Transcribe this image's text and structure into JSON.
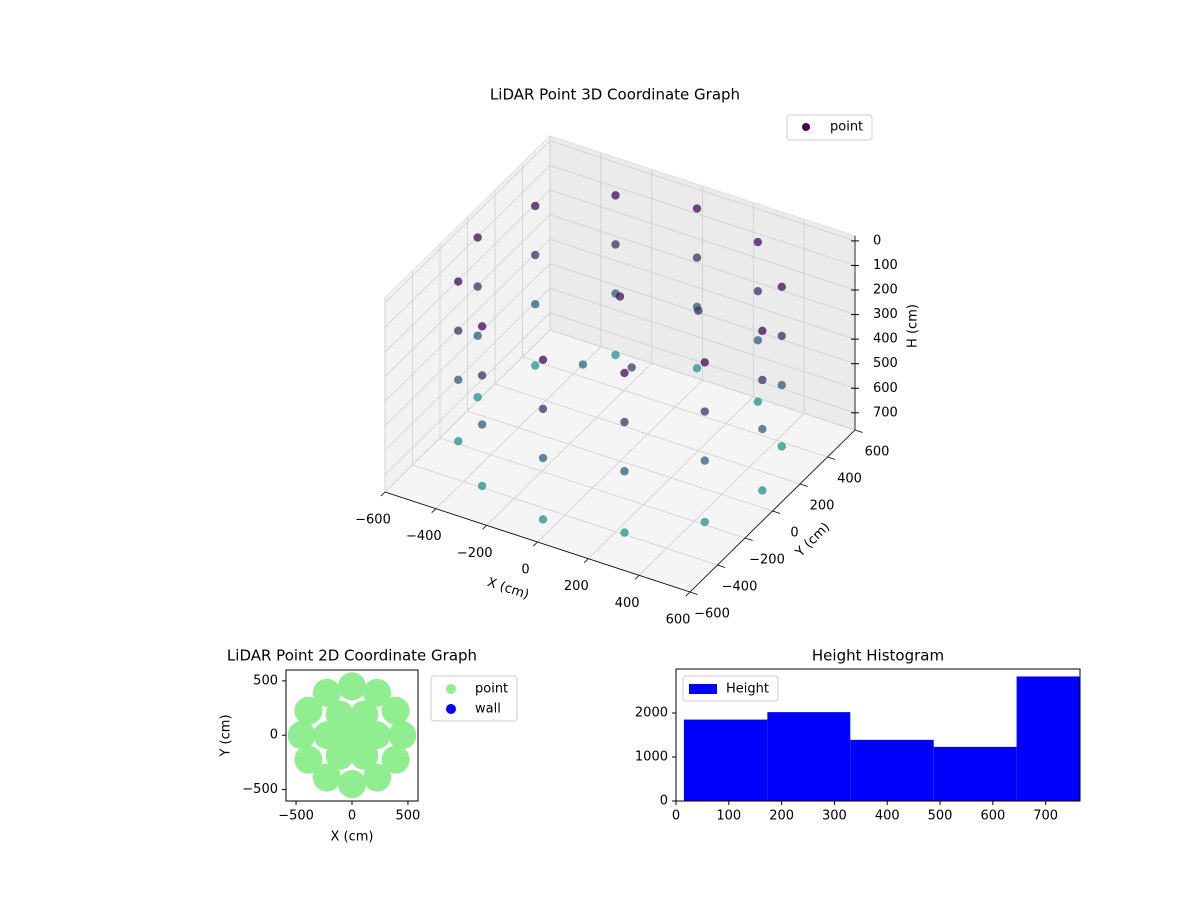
{
  "chart_data": [
    {
      "type": "scatter3d",
      "title": "LiDAR Point 3D Coordinate Graph",
      "x_label": "X (cm)",
      "y_label": "Y (cm)",
      "z_label": "H (cm)",
      "xlim": [
        -600,
        600
      ],
      "ylim": [
        -600,
        600
      ],
      "zlim": [
        -20,
        770
      ],
      "z_inverted": true,
      "xticks": [
        {
          "value": -600,
          "label": "−600"
        },
        {
          "value": -400,
          "label": "−400"
        },
        {
          "value": -200,
          "label": "−200"
        },
        0,
        200,
        400,
        600
      ],
      "yticks": [
        {
          "value": -600,
          "label": "−600"
        },
        {
          "value": -400,
          "label": "−400"
        },
        {
          "value": -200,
          "label": "−200"
        },
        0,
        200,
        400,
        600
      ],
      "zticks": [
        0,
        100,
        200,
        300,
        400,
        500,
        600,
        700
      ],
      "grid": true,
      "legend": "upper right",
      "series": [
        {
          "name": "point",
          "color": "#440154",
          "colormap": [
            "#440154",
            "#21918c"
          ],
          "x": [
            560,
            560,
            560,
            560,
            485,
            485,
            485,
            485,
            280,
            280,
            280,
            280,
            0,
            0,
            0,
            0,
            -280,
            -280,
            -280,
            -280,
            -485,
            -485,
            -485,
            -485,
            -560,
            -560,
            -560,
            -560,
            -485,
            -485,
            -485,
            -485,
            -280,
            -280,
            -280,
            -280,
            0,
            0,
            0,
            0,
            280,
            280,
            280,
            280,
            485,
            485,
            485,
            485,
            0,
            100,
            -200,
            200
          ],
          "y": [
            0,
            0,
            0,
            0,
            280,
            280,
            280,
            280,
            485,
            485,
            485,
            485,
            560,
            560,
            560,
            560,
            485,
            485,
            485,
            485,
            280,
            280,
            280,
            280,
            0,
            0,
            0,
            0,
            -280,
            -280,
            -280,
            -280,
            -485,
            -485,
            -485,
            -485,
            -560,
            -560,
            -560,
            -560,
            -485,
            -485,
            -485,
            -485,
            -280,
            -280,
            -280,
            -280,
            0,
            -100,
            100,
            200
          ],
          "z": [
            50,
            250,
            450,
            700,
            50,
            250,
            450,
            700,
            50,
            250,
            450,
            700,
            50,
            250,
            450,
            700,
            50,
            250,
            450,
            700,
            50,
            250,
            450,
            700,
            50,
            250,
            450,
            700,
            50,
            250,
            450,
            700,
            50,
            250,
            450,
            700,
            50,
            250,
            450,
            700,
            50,
            250,
            450,
            700,
            50,
            250,
            450,
            700,
            100,
            300,
            500,
            200
          ]
        }
      ]
    },
    {
      "type": "scatter",
      "title": "LiDAR Point 2D Coordinate Graph",
      "x_label": "X (cm)",
      "y_label": "Y (cm)",
      "xlim": [
        -590,
        590
      ],
      "ylim": [
        -605,
        600
      ],
      "xticks": [
        {
          "value": -500,
          "label": "−500"
        },
        0,
        500
      ],
      "yticks": [
        {
          "value": -500,
          "label": "−500"
        },
        0,
        500
      ],
      "legend": "outside upper right",
      "series": [
        {
          "name": "point",
          "color": "#90ee90",
          "x": [
            450,
            390,
            225,
            0,
            -225,
            -390,
            -450,
            -390,
            -225,
            0,
            225,
            390,
            220,
            110,
            -110,
            -220,
            -110,
            110,
            0
          ],
          "y": [
            0,
            225,
            390,
            450,
            390,
            225,
            0,
            -225,
            -390,
            -450,
            -390,
            -225,
            0,
            190,
            190,
            0,
            -190,
            -190,
            0
          ]
        },
        {
          "name": "wall",
          "color": "#0000ff",
          "x": [],
          "y": []
        }
      ]
    },
    {
      "type": "histogram",
      "title": "Height Histogram",
      "bins": [
        15,
        173,
        330,
        488,
        645,
        803
      ],
      "counts": [
        1850,
        2020,
        1390,
        1230,
        2830
      ],
      "xlim": [
        0,
        765
      ],
      "ylim": [
        0,
        3000
      ],
      "xticks": [
        0,
        100,
        200,
        300,
        400,
        500,
        600,
        700
      ],
      "yticks": [
        0,
        1000,
        2000
      ],
      "legend": "upper left",
      "series_name": "Height",
      "color": "#0000ff"
    }
  ]
}
